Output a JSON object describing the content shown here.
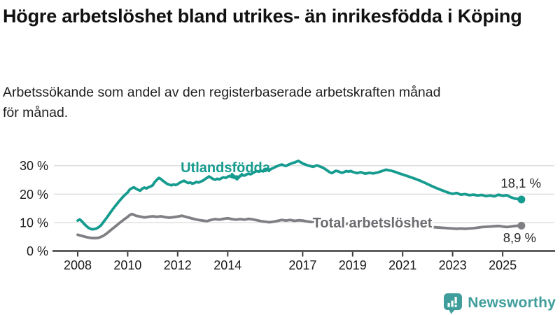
{
  "header": {
    "title": "Högre arbetslöshet bland utrikes- än inrikesfödda i Köping",
    "subtitle": "Arbetssökande som andel av den registerbaserade arbetskraften månad för månad."
  },
  "chart_data": {
    "type": "line",
    "title": "Högre arbetslöshet bland utrikes- än inrikesfödda i Köping",
    "subtitle": "Arbetssökande som andel av den registerbaserade arbetskraften månad för månad.",
    "xlabel": "",
    "ylabel": "",
    "xlim": [
      2007.8,
      2026.2
    ],
    "ylim": [
      0,
      34
    ],
    "grid": "horizontal",
    "legend_position": "inline-labels",
    "x_ticks": [
      {
        "value": 2008,
        "label": "2008"
      },
      {
        "value": 2010,
        "label": "2010"
      },
      {
        "value": 2012,
        "label": "2012"
      },
      {
        "value": 2014,
        "label": "2014"
      },
      {
        "value": 2017,
        "label": "2017"
      },
      {
        "value": 2019,
        "label": "2019"
      },
      {
        "value": 2021,
        "label": "2021"
      },
      {
        "value": 2023,
        "label": "2023"
      },
      {
        "value": 2025,
        "label": "2025"
      }
    ],
    "y_ticks": [
      {
        "value": 0,
        "label": "0 %"
      },
      {
        "value": 10,
        "label": "10 %"
      },
      {
        "value": 20,
        "label": "20 %"
      },
      {
        "value": 30,
        "label": "30 %"
      }
    ],
    "series": [
      {
        "name": "Utlandsfödda",
        "color": "#169b8f",
        "end_value": 18.1,
        "end_label": "18,1 %",
        "points": [
          [
            2008.0,
            10.7
          ],
          [
            2008.08,
            11.1
          ],
          [
            2008.17,
            10.4
          ],
          [
            2008.25,
            9.6
          ],
          [
            2008.33,
            8.9
          ],
          [
            2008.42,
            8.2
          ],
          [
            2008.5,
            7.8
          ],
          [
            2008.58,
            7.6
          ],
          [
            2008.67,
            7.7
          ],
          [
            2008.75,
            7.9
          ],
          [
            2008.83,
            8.3
          ],
          [
            2008.92,
            8.9
          ],
          [
            2009.0,
            9.8
          ],
          [
            2009.17,
            11.8
          ],
          [
            2009.33,
            13.8
          ],
          [
            2009.5,
            15.8
          ],
          [
            2009.67,
            17.6
          ],
          [
            2009.83,
            19.2
          ],
          [
            2010.0,
            20.6
          ],
          [
            2010.08,
            21.6
          ],
          [
            2010.17,
            22.1
          ],
          [
            2010.25,
            22.4
          ],
          [
            2010.33,
            21.9
          ],
          [
            2010.42,
            21.5
          ],
          [
            2010.5,
            21.2
          ],
          [
            2010.58,
            21.9
          ],
          [
            2010.67,
            22.3
          ],
          [
            2010.75,
            22.0
          ],
          [
            2010.83,
            22.4
          ],
          [
            2010.92,
            22.7
          ],
          [
            2011.0,
            23.1
          ],
          [
            2011.08,
            24.2
          ],
          [
            2011.17,
            25.1
          ],
          [
            2011.25,
            25.7
          ],
          [
            2011.33,
            25.3
          ],
          [
            2011.42,
            24.6
          ],
          [
            2011.5,
            24.1
          ],
          [
            2011.58,
            23.6
          ],
          [
            2011.67,
            23.3
          ],
          [
            2011.75,
            23.1
          ],
          [
            2011.83,
            23.4
          ],
          [
            2011.92,
            23.2
          ],
          [
            2012.0,
            23.5
          ],
          [
            2012.08,
            24.0
          ],
          [
            2012.17,
            24.4
          ],
          [
            2012.25,
            24.7
          ],
          [
            2012.33,
            24.3
          ],
          [
            2012.42,
            23.9
          ],
          [
            2012.5,
            24.1
          ],
          [
            2012.58,
            23.7
          ],
          [
            2012.67,
            23.9
          ],
          [
            2012.75,
            24.3
          ],
          [
            2012.83,
            24.1
          ],
          [
            2012.92,
            24.4
          ],
          [
            2013.0,
            24.7
          ],
          [
            2013.08,
            25.2
          ],
          [
            2013.17,
            25.7
          ],
          [
            2013.25,
            26.2
          ],
          [
            2013.33,
            25.8
          ],
          [
            2013.42,
            25.3
          ],
          [
            2013.5,
            25.1
          ],
          [
            2013.58,
            25.4
          ],
          [
            2013.67,
            25.2
          ],
          [
            2013.75,
            25.6
          ],
          [
            2013.83,
            25.9
          ],
          [
            2013.92,
            25.7
          ],
          [
            2014.0,
            26.1
          ],
          [
            2014.08,
            26.4
          ],
          [
            2014.17,
            26.0
          ],
          [
            2014.25,
            25.8
          ],
          [
            2014.33,
            26.2
          ],
          [
            2014.42,
            26.0
          ],
          [
            2014.5,
            26.4
          ],
          [
            2014.58,
            26.7
          ],
          [
            2014.67,
            26.5
          ],
          [
            2014.75,
            26.9
          ],
          [
            2014.83,
            27.2
          ],
          [
            2014.92,
            27.0
          ],
          [
            2015.0,
            27.4
          ],
          [
            2015.08,
            27.8
          ],
          [
            2015.17,
            28.1
          ],
          [
            2015.25,
            27.9
          ],
          [
            2015.33,
            28.2
          ],
          [
            2015.42,
            28.0
          ],
          [
            2015.5,
            28.4
          ],
          [
            2015.58,
            28.7
          ],
          [
            2015.67,
            28.5
          ],
          [
            2015.75,
            28.9
          ],
          [
            2015.83,
            29.2
          ],
          [
            2015.92,
            29.6
          ],
          [
            2016.0,
            29.9
          ],
          [
            2016.08,
            30.2
          ],
          [
            2016.17,
            30.4
          ],
          [
            2016.25,
            30.1
          ],
          [
            2016.33,
            29.9
          ],
          [
            2016.42,
            30.3
          ],
          [
            2016.5,
            30.6
          ],
          [
            2016.58,
            30.9
          ],
          [
            2016.67,
            31.1
          ],
          [
            2016.75,
            31.4
          ],
          [
            2016.83,
            31.7
          ],
          [
            2016.92,
            31.2
          ],
          [
            2017.0,
            30.8
          ],
          [
            2017.08,
            30.5
          ],
          [
            2017.17,
            30.2
          ],
          [
            2017.25,
            30.0
          ],
          [
            2017.33,
            29.8
          ],
          [
            2017.42,
            29.6
          ],
          [
            2017.5,
            29.9
          ],
          [
            2017.58,
            30.1
          ],
          [
            2017.67,
            29.8
          ],
          [
            2017.75,
            29.5
          ],
          [
            2017.83,
            29.2
          ],
          [
            2017.92,
            28.7
          ],
          [
            2018.0,
            28.2
          ],
          [
            2018.08,
            27.7
          ],
          [
            2018.17,
            27.4
          ],
          [
            2018.25,
            27.8
          ],
          [
            2018.33,
            28.2
          ],
          [
            2018.42,
            28.0
          ],
          [
            2018.5,
            27.7
          ],
          [
            2018.58,
            27.5
          ],
          [
            2018.67,
            27.8
          ],
          [
            2018.75,
            28.1
          ],
          [
            2018.83,
            27.9
          ],
          [
            2018.92,
            28.1
          ],
          [
            2019.0,
            27.8
          ],
          [
            2019.17,
            27.4
          ],
          [
            2019.33,
            27.7
          ],
          [
            2019.5,
            27.2
          ],
          [
            2019.67,
            27.5
          ],
          [
            2019.83,
            27.3
          ],
          [
            2020.0,
            27.6
          ],
          [
            2020.17,
            28.1
          ],
          [
            2020.33,
            28.6
          ],
          [
            2020.5,
            28.3
          ],
          [
            2020.67,
            27.9
          ],
          [
            2020.83,
            27.4
          ],
          [
            2021.0,
            26.9
          ],
          [
            2021.17,
            26.4
          ],
          [
            2021.33,
            25.9
          ],
          [
            2021.5,
            25.4
          ],
          [
            2021.67,
            24.8
          ],
          [
            2021.83,
            24.2
          ],
          [
            2022.0,
            23.5
          ],
          [
            2022.17,
            22.8
          ],
          [
            2022.33,
            22.2
          ],
          [
            2022.5,
            21.6
          ],
          [
            2022.67,
            21.0
          ],
          [
            2022.83,
            20.5
          ],
          [
            2023.0,
            20.1
          ],
          [
            2023.17,
            20.4
          ],
          [
            2023.33,
            19.8
          ],
          [
            2023.5,
            20.0
          ],
          [
            2023.67,
            19.6
          ],
          [
            2023.83,
            19.8
          ],
          [
            2024.0,
            19.5
          ],
          [
            2024.17,
            19.7
          ],
          [
            2024.33,
            19.3
          ],
          [
            2024.5,
            19.5
          ],
          [
            2024.67,
            19.2
          ],
          [
            2024.83,
            19.8
          ],
          [
            2025.0,
            19.4
          ],
          [
            2025.17,
            19.6
          ],
          [
            2025.33,
            18.9
          ],
          [
            2025.5,
            18.4
          ],
          [
            2025.67,
            18.2
          ],
          [
            2025.75,
            18.1
          ]
        ]
      },
      {
        "name": "Total arbetslöshet",
        "color": "#7f7f84",
        "end_value": 8.9,
        "end_label": "8,9 %",
        "points": [
          [
            2008.0,
            5.7
          ],
          [
            2008.17,
            5.3
          ],
          [
            2008.33,
            4.9
          ],
          [
            2008.5,
            4.6
          ],
          [
            2008.67,
            4.5
          ],
          [
            2008.83,
            4.6
          ],
          [
            2009.0,
            5.2
          ],
          [
            2009.17,
            6.2
          ],
          [
            2009.33,
            7.4
          ],
          [
            2009.5,
            8.6
          ],
          [
            2009.67,
            9.8
          ],
          [
            2009.83,
            10.9
          ],
          [
            2010.0,
            12.0
          ],
          [
            2010.08,
            12.6
          ],
          [
            2010.17,
            13.0
          ],
          [
            2010.25,
            12.7
          ],
          [
            2010.33,
            12.4
          ],
          [
            2010.5,
            12.1
          ],
          [
            2010.67,
            11.8
          ],
          [
            2010.83,
            12.0
          ],
          [
            2011.0,
            12.2
          ],
          [
            2011.17,
            12.0
          ],
          [
            2011.33,
            12.2
          ],
          [
            2011.5,
            11.9
          ],
          [
            2011.67,
            11.7
          ],
          [
            2011.83,
            11.9
          ],
          [
            2012.0,
            12.1
          ],
          [
            2012.17,
            12.4
          ],
          [
            2012.33,
            12.0
          ],
          [
            2012.5,
            11.6
          ],
          [
            2012.67,
            11.2
          ],
          [
            2012.83,
            10.9
          ],
          [
            2013.0,
            10.7
          ],
          [
            2013.17,
            10.5
          ],
          [
            2013.33,
            10.9
          ],
          [
            2013.5,
            11.2
          ],
          [
            2013.67,
            11.0
          ],
          [
            2013.83,
            11.3
          ],
          [
            2014.0,
            11.5
          ],
          [
            2014.17,
            11.2
          ],
          [
            2014.33,
            11.0
          ],
          [
            2014.5,
            11.2
          ],
          [
            2014.67,
            11.0
          ],
          [
            2014.83,
            11.3
          ],
          [
            2015.0,
            11.1
          ],
          [
            2015.17,
            10.8
          ],
          [
            2015.33,
            10.5
          ],
          [
            2015.5,
            10.3
          ],
          [
            2015.67,
            10.1
          ],
          [
            2015.83,
            10.3
          ],
          [
            2016.0,
            10.6
          ],
          [
            2016.17,
            10.9
          ],
          [
            2016.33,
            10.7
          ],
          [
            2016.5,
            10.9
          ],
          [
            2016.67,
            10.6
          ],
          [
            2016.83,
            10.8
          ],
          [
            2017.0,
            10.7
          ],
          [
            2017.17,
            10.4
          ],
          [
            2017.33,
            10.2
          ],
          [
            2017.5,
            10.4
          ],
          [
            2017.67,
            10.1
          ],
          [
            2017.83,
            10.3
          ],
          [
            2018.0,
            10.0
          ],
          [
            2018.17,
            9.7
          ],
          [
            2018.33,
            9.9
          ],
          [
            2018.5,
            9.6
          ],
          [
            2018.67,
            9.4
          ],
          [
            2018.83,
            9.6
          ],
          [
            2019.0,
            9.4
          ],
          [
            2019.17,
            9.2
          ],
          [
            2019.33,
            9.4
          ],
          [
            2019.5,
            9.1
          ],
          [
            2019.67,
            9.3
          ],
          [
            2019.83,
            9.5
          ],
          [
            2020.0,
            9.7
          ],
          [
            2020.17,
            10.1
          ],
          [
            2020.33,
            10.4
          ],
          [
            2020.5,
            10.2
          ],
          [
            2020.67,
            9.9
          ],
          [
            2020.83,
            9.7
          ],
          [
            2021.0,
            9.5
          ],
          [
            2021.17,
            9.3
          ],
          [
            2021.33,
            9.1
          ],
          [
            2021.5,
            8.9
          ],
          [
            2021.67,
            8.8
          ],
          [
            2021.83,
            8.7
          ],
          [
            2022.0,
            8.6
          ],
          [
            2022.17,
            8.4
          ],
          [
            2022.33,
            8.3
          ],
          [
            2022.5,
            8.2
          ],
          [
            2022.67,
            8.1
          ],
          [
            2022.83,
            8.0
          ],
          [
            2023.0,
            7.9
          ],
          [
            2023.17,
            7.8
          ],
          [
            2023.33,
            7.9
          ],
          [
            2023.5,
            7.8
          ],
          [
            2023.67,
            7.9
          ],
          [
            2023.83,
            8.0
          ],
          [
            2024.0,
            8.2
          ],
          [
            2024.17,
            8.4
          ],
          [
            2024.33,
            8.5
          ],
          [
            2024.5,
            8.6
          ],
          [
            2024.67,
            8.7
          ],
          [
            2024.83,
            8.8
          ],
          [
            2025.0,
            8.6
          ],
          [
            2025.17,
            8.4
          ],
          [
            2025.33,
            8.6
          ],
          [
            2025.5,
            8.8
          ],
          [
            2025.67,
            8.9
          ],
          [
            2025.75,
            8.9
          ]
        ]
      }
    ]
  },
  "branding": {
    "name": "Newsworthy",
    "icon": "newsworthy-chart-bubble-icon",
    "color": "#3f9e9c"
  },
  "colors": {
    "foreign_born_line": "#169b8f",
    "total_line": "#7f7f84",
    "total_label": "#6c6c71",
    "gridline": "#dcdcdc",
    "axis": "#3d3d3d",
    "title_text": "#111111"
  }
}
